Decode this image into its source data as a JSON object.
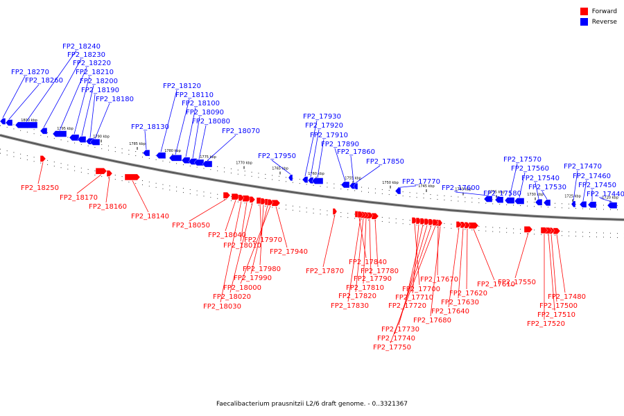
{
  "legend": {
    "forward_label": "Forward",
    "reverse_label": "Reverse",
    "forward_color": "#ff0000",
    "reverse_color": "#0000ff"
  },
  "caption": "Faecalibacterium prausnitzii L2/6 draft genome. - 0..3321367",
  "scale": {
    "unit": "kbp",
    "labels": [
      "1800 kbp",
      "1795 kbp",
      "1790 kbp",
      "1785 kbp",
      "1780 kbp",
      "1775 kbp",
      "1770 kbp",
      "1765 kbp",
      "1760 kbp",
      "1755 kbp",
      "1750 kbp",
      "1745 kbp",
      "1740 kbp",
      "1735 kbp",
      "1730 kbp",
      "1725 kbp",
      "1720 kbp"
    ]
  },
  "reverse_genes": [
    "FP2_18270",
    "FP2_18260",
    "FP2_18240",
    "FP2_18230",
    "FP2_18220",
    "FP2_18210",
    "FP2_18200",
    "FP2_18190",
    "FP2_18180",
    "FP2_18130",
    "FP2_18120",
    "FP2_18110",
    "FP2_18100",
    "FP2_18090",
    "FP2_18080",
    "FP2_18070",
    "FP2_17950",
    "FP2_17930",
    "FP2_17920",
    "FP2_17910",
    "FP2_17890",
    "FP2_17860",
    "FP2_17850",
    "FP2_17770",
    "FP2_17600",
    "FP2_17580",
    "FP2_17570",
    "FP2_17560",
    "FP2_17540",
    "FP2_17530",
    "FP2_17470",
    "FP2_17460",
    "FP2_17450",
    "FP2_17440"
  ],
  "forward_genes": [
    "FP2_18250",
    "FP2_18170",
    "FP2_18160",
    "FP2_18140",
    "FP2_18050",
    "FP2_18040",
    "FP2_18010",
    "FP2_17970",
    "FP2_17940",
    "FP2_17980",
    "FP2_17990",
    "FP2_18000",
    "FP2_18020",
    "FP2_18030",
    "FP2_17870",
    "FP2_17840",
    "FP2_17780",
    "FP2_17790",
    "FP2_17810",
    "FP2_17820",
    "FP2_17830",
    "FP2_17670",
    "FP2_17700",
    "FP2_17710",
    "FP2_17720",
    "FP2_17730",
    "FP2_17740",
    "FP2_17750",
    "FP2_17610",
    "FP2_17620",
    "FP2_17630",
    "FP2_17640",
    "FP2_17680",
    "FP2_17550",
    "FP2_17480",
    "FP2_17500",
    "FP2_17510",
    "FP2_17520"
  ]
}
